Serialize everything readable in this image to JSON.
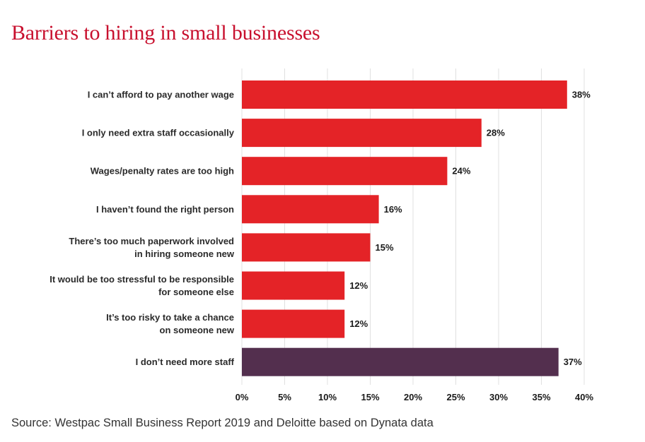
{
  "title": "Barriers to hiring in small businesses",
  "source": "Source: Westpac Small Business Report 2019 and Deloitte based on Dynata data",
  "colors": {
    "title": "#c8102e",
    "bar_primary": "#e42327",
    "bar_secondary": "#532f4e",
    "grid": "#e0e0e0"
  },
  "chart_data": {
    "type": "bar",
    "orientation": "horizontal",
    "categories": [
      [
        "I can’t afford to pay another wage"
      ],
      [
        "I only need extra staff occasionally"
      ],
      [
        "Wages/penalty rates are too high"
      ],
      [
        "I haven’t found the right person"
      ],
      [
        "There’s too much paperwork involved",
        "in hiring someone new"
      ],
      [
        "It would be too stressful to be responsible",
        "for someone else"
      ],
      [
        "It’s too risky to take a chance",
        "on someone new"
      ],
      [
        "I don’t need more staff"
      ]
    ],
    "values": [
      38,
      28,
      24,
      16,
      15,
      12,
      12,
      37
    ],
    "value_labels": [
      "38%",
      "28%",
      "24%",
      "16%",
      "15%",
      "12%",
      "12%",
      "37%"
    ],
    "bar_colors": [
      "#e42327",
      "#e42327",
      "#e42327",
      "#e42327",
      "#e42327",
      "#e42327",
      "#e42327",
      "#532f4e"
    ],
    "xlim": [
      0,
      40
    ],
    "x_ticks": [
      "0%",
      "5%",
      "10%",
      "15%",
      "20%",
      "25%",
      "30%",
      "35%",
      "40%"
    ],
    "grid": true,
    "legend": "none"
  }
}
